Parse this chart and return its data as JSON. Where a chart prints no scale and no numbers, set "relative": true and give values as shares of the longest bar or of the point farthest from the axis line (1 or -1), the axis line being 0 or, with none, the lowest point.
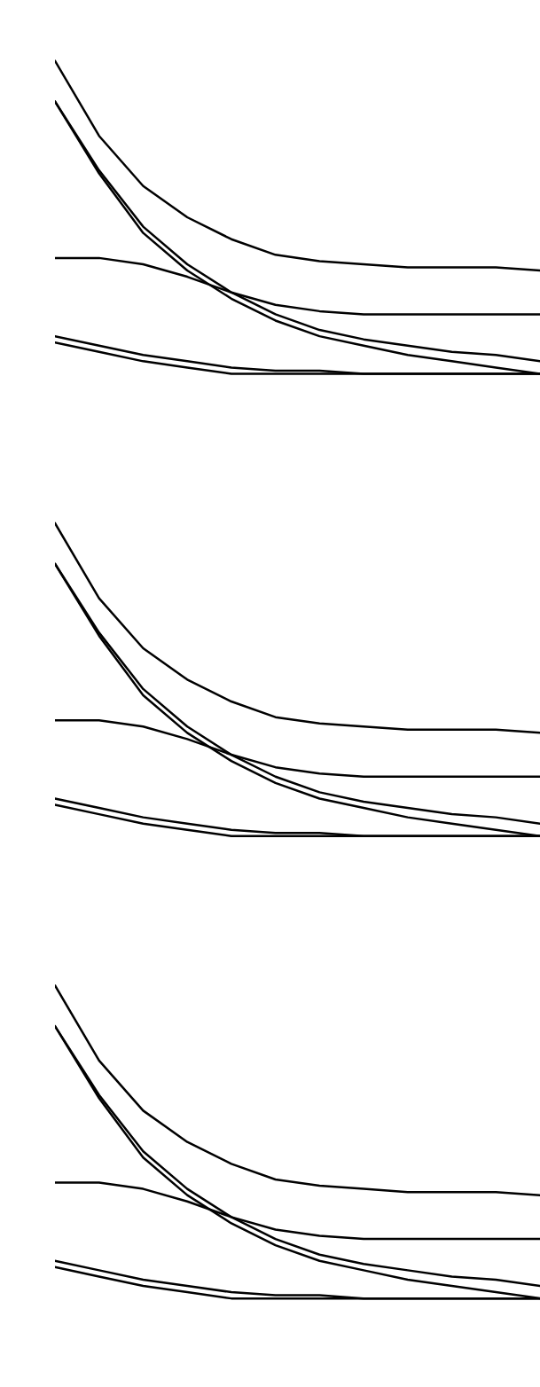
{
  "chart_data": [
    {
      "type": "line",
      "relative": true,
      "categories": [
        null,
        null,
        null,
        null,
        null,
        null,
        null,
        null,
        null,
        null,
        null,
        null
      ],
      "series": [
        {
          "color": "#000000",
          "values": [
            1.0,
            0.76,
            0.6,
            0.5,
            0.43,
            0.38,
            0.36,
            0.35,
            0.34,
            0.34,
            0.34,
            0.33
          ]
        },
        {
          "color": "#000000",
          "values": [
            0.87,
            0.64,
            0.45,
            0.33,
            0.24,
            0.17,
            0.12,
            0.09,
            0.06,
            0.04,
            0.02,
            0.0
          ]
        },
        {
          "color": "#000000",
          "values": [
            0.87,
            0.65,
            0.47,
            0.35,
            0.26,
            0.19,
            0.14,
            0.11,
            0.09,
            0.07,
            0.06,
            0.04
          ]
        },
        {
          "color": "#000000",
          "values": [
            0.37,
            0.37,
            0.35,
            0.31,
            0.26,
            0.22,
            0.2,
            0.19,
            0.19,
            0.19,
            0.19,
            0.19
          ]
        },
        {
          "color": "#000000",
          "values": [
            0.12,
            0.09,
            0.06,
            0.04,
            0.02,
            0.01,
            0.01,
            0.0,
            0.0,
            0.0,
            0.0,
            0.0
          ]
        },
        {
          "color": "#000000",
          "values": [
            0.1,
            0.07,
            0.04,
            0.02,
            0.0,
            0.0,
            0.0,
            0.0,
            0.0,
            0.0,
            0.0,
            0.0
          ]
        }
      ]
    },
    {
      "type": "line",
      "relative": true,
      "categories": [
        null,
        null,
        null,
        null,
        null,
        null,
        null,
        null,
        null,
        null,
        null,
        null
      ],
      "series": [
        {
          "color": "#000000",
          "values": [
            1.0,
            0.76,
            0.6,
            0.5,
            0.43,
            0.38,
            0.36,
            0.35,
            0.34,
            0.34,
            0.34,
            0.33
          ]
        },
        {
          "color": "#000000",
          "values": [
            0.87,
            0.64,
            0.45,
            0.33,
            0.24,
            0.17,
            0.12,
            0.09,
            0.06,
            0.04,
            0.02,
            0.0
          ]
        },
        {
          "color": "#000000",
          "values": [
            0.87,
            0.65,
            0.47,
            0.35,
            0.26,
            0.19,
            0.14,
            0.11,
            0.09,
            0.07,
            0.06,
            0.04
          ]
        },
        {
          "color": "#000000",
          "values": [
            0.37,
            0.37,
            0.35,
            0.31,
            0.26,
            0.22,
            0.2,
            0.19,
            0.19,
            0.19,
            0.19,
            0.19
          ]
        },
        {
          "color": "#000000",
          "values": [
            0.12,
            0.09,
            0.06,
            0.04,
            0.02,
            0.01,
            0.01,
            0.0,
            0.0,
            0.0,
            0.0,
            0.0
          ]
        },
        {
          "color": "#000000",
          "values": [
            0.1,
            0.07,
            0.04,
            0.02,
            0.0,
            0.0,
            0.0,
            0.0,
            0.0,
            0.0,
            0.0,
            0.0
          ]
        }
      ]
    },
    {
      "type": "line",
      "relative": true,
      "categories": [
        null,
        null,
        null,
        null,
        null,
        null,
        null,
        null,
        null,
        null,
        null,
        null
      ],
      "series": [
        {
          "color": "#000000",
          "values": [
            1.0,
            0.76,
            0.6,
            0.5,
            0.43,
            0.38,
            0.36,
            0.35,
            0.34,
            0.34,
            0.34,
            0.33
          ]
        },
        {
          "color": "#000000",
          "values": [
            0.87,
            0.64,
            0.45,
            0.33,
            0.24,
            0.17,
            0.12,
            0.09,
            0.06,
            0.04,
            0.02,
            0.0
          ]
        },
        {
          "color": "#000000",
          "values": [
            0.87,
            0.65,
            0.47,
            0.35,
            0.26,
            0.19,
            0.14,
            0.11,
            0.09,
            0.07,
            0.06,
            0.04
          ]
        },
        {
          "color": "#000000",
          "values": [
            0.37,
            0.37,
            0.35,
            0.31,
            0.26,
            0.22,
            0.2,
            0.19,
            0.19,
            0.19,
            0.19,
            0.19
          ]
        },
        {
          "color": "#000000",
          "values": [
            0.12,
            0.09,
            0.06,
            0.04,
            0.02,
            0.01,
            0.01,
            0.0,
            0.0,
            0.0,
            0.0,
            0.0
          ]
        },
        {
          "color": "#000000",
          "values": [
            0.1,
            0.07,
            0.04,
            0.02,
            0.0,
            0.0,
            0.0,
            0.0,
            0.0,
            0.0,
            0.0,
            0.0
          ]
        }
      ]
    }
  ]
}
